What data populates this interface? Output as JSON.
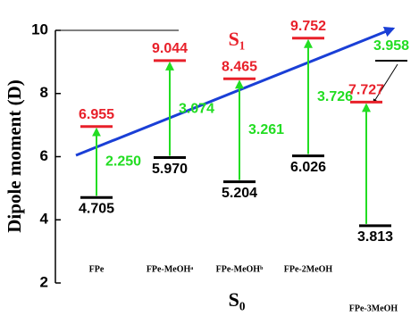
{
  "chart_data": {
    "type": "level",
    "y_label": "Dipole moment (D)",
    "ylim": [
      2,
      10
    ],
    "yticks": [
      2,
      4,
      6,
      8,
      10
    ],
    "categories": [
      "FPe",
      "FPe-MeOHᵃ",
      "FPe-MeOHᵇ",
      "FPe-2MeOH",
      "FPe-3MeOH"
    ],
    "series": [
      {
        "name": "S₀",
        "color": "#000000",
        "values": [
          4.705,
          5.97,
          5.204,
          6.026,
          3.813
        ],
        "value_labels": [
          "4.705",
          "5.970",
          "5.204",
          "6.026",
          "3.813"
        ]
      },
      {
        "name": "S₁",
        "color": "#e8202a",
        "values": [
          6.955,
          9.044,
          8.465,
          9.752,
          7.727
        ],
        "value_labels": [
          "6.955",
          "9.044",
          "8.465",
          "9.752",
          "7.727"
        ]
      }
    ],
    "differences": {
      "color": "#22dd22",
      "values": [
        2.25,
        3.074,
        3.261,
        3.726,
        3.958
      ],
      "value_labels": [
        "2.250",
        "3.074",
        "3.261",
        "3.726",
        "3.958"
      ]
    }
  }
}
